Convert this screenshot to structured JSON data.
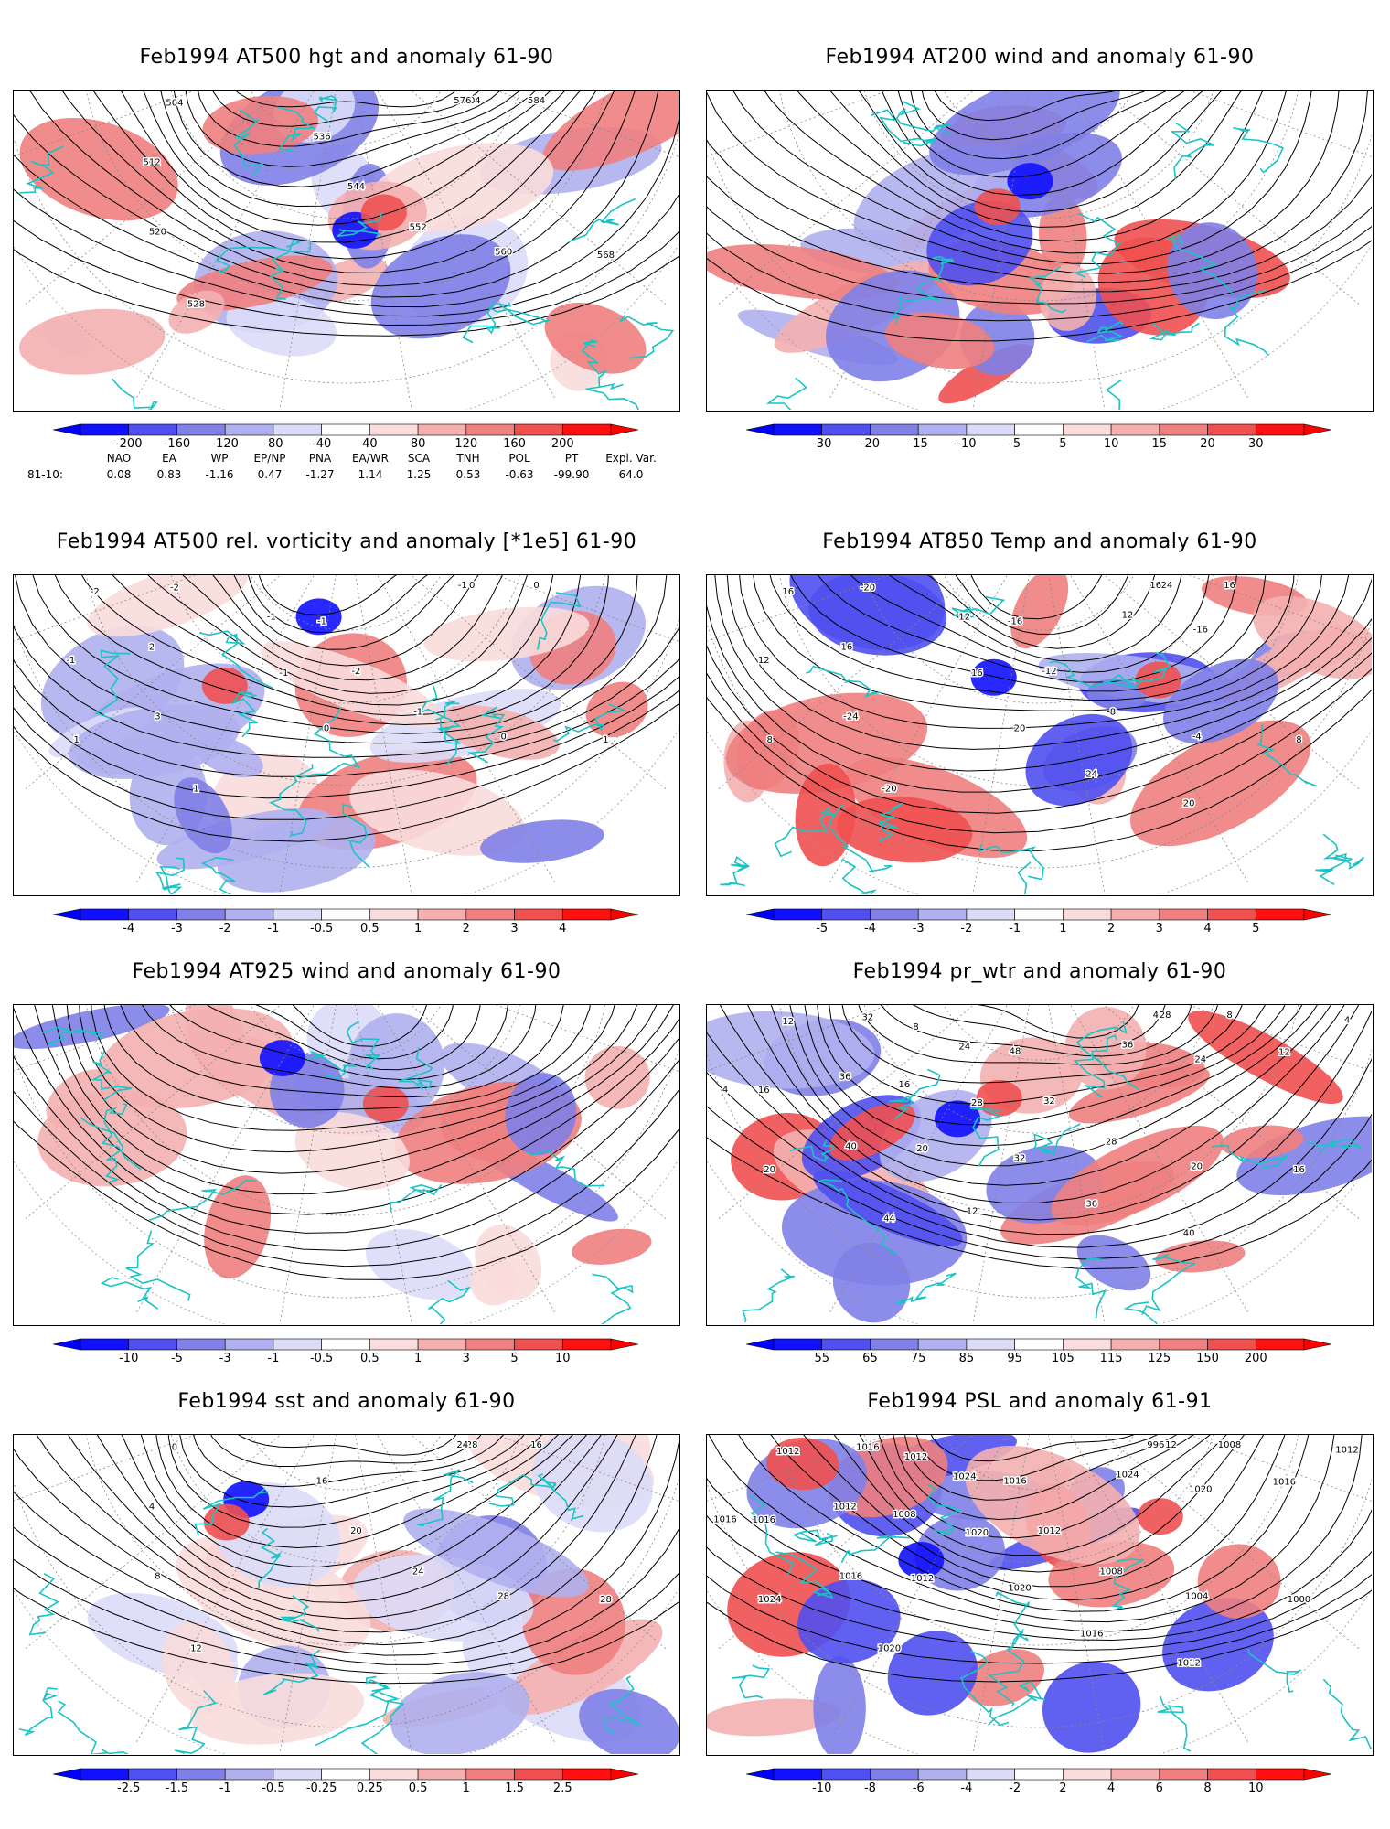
{
  "panels": [
    {
      "title": "Feb1994 AT500 hgt and anomaly 61-90",
      "contour_labels": [
        "504",
        "504",
        "512",
        "520",
        "528",
        "536",
        "544",
        "552",
        "560",
        "568",
        "576",
        "584"
      ],
      "colorbar": [
        "-200",
        "-160",
        "-120",
        "-80",
        "-40",
        "40",
        "80",
        "120",
        "160",
        "200"
      ]
    },
    {
      "title": "Feb1994 AT200 wind and anomaly 61-90",
      "contour_labels": [],
      "colorbar": [
        "-30",
        "-20",
        "-15",
        "-10",
        "-5",
        "5",
        "10",
        "15",
        "20",
        "30"
      ]
    },
    {
      "title": "Feb1994 AT500 rel. vorticity and anomaly [*1e5] 61-90",
      "contour_labels": [
        "0",
        "-2",
        "2",
        "3",
        "1",
        "-1",
        "-2",
        "-1",
        "0",
        "1",
        "-1",
        "0",
        "-2",
        "-1",
        "1",
        "-1",
        "-1",
        "0"
      ],
      "colorbar": [
        "-4",
        "-3",
        "-2",
        "-1",
        "-0.5",
        "0.5",
        "1",
        "2",
        "3",
        "4"
      ]
    },
    {
      "title": "Feb1994 AT850 Temp and anomaly 61-90",
      "contour_labels": [
        "-24",
        "-20",
        "-16",
        "-24",
        "-20",
        "-16",
        "-12",
        "-8",
        "-4",
        "8",
        "16",
        "16",
        "16",
        "12",
        "8",
        "12",
        "16",
        "20",
        "24",
        "20",
        "12",
        "-16"
      ],
      "colorbar": [
        "-5",
        "-4",
        "-3",
        "-2",
        "-1",
        "1",
        "2",
        "3",
        "4",
        "5"
      ]
    },
    {
      "title": "Feb1994 AT925 wind and anomaly 61-90",
      "contour_labels": [],
      "colorbar": [
        "-10",
        "-5",
        "-3",
        "-1",
        "-0.5",
        "0.5",
        "1",
        "3",
        "5",
        "10"
      ]
    },
    {
      "title": "Feb1994 pr_wtr and anomaly 61-90",
      "contour_labels": [
        "28",
        "32",
        "36",
        "40",
        "44",
        "48",
        "32",
        "28",
        "20",
        "16",
        "4",
        "8",
        "12",
        "16",
        "20",
        "24",
        "28",
        "32",
        "36",
        "40",
        "36",
        "24",
        "12",
        "4",
        "4",
        "8",
        "16",
        "20",
        "12"
      ],
      "colorbar": [
        "55",
        "65",
        "75",
        "85",
        "95",
        "105",
        "115",
        "125",
        "150",
        "200"
      ]
    },
    {
      "title": "Feb1994 sst and anomaly 61-90",
      "contour_labels": [
        "28",
        "0",
        "4",
        "8",
        "12",
        "16",
        "20",
        "24",
        "28",
        "28",
        "24",
        "16"
      ],
      "colorbar": [
        "-2.5",
        "-1.5",
        "-1",
        "-0.5",
        "-0.25",
        "0.25",
        "0.5",
        "1",
        "1.5",
        "2.5"
      ]
    },
    {
      "title": "Feb1994 PSL and anomaly 61-91",
      "contour_labels": [
        "1012",
        "1016",
        "1012",
        "1016",
        "1020",
        "1016",
        "1012",
        "1008",
        "1004",
        "1000",
        "996",
        "1008",
        "1012",
        "1016",
        "1024",
        "1024",
        "1020",
        "1020",
        "1016",
        "1012",
        "1024",
        "1020",
        "1016",
        "1012",
        "1016",
        "1012",
        "1008",
        "1012"
      ],
      "colorbar": [
        "-10",
        "-8",
        "-6",
        "-4",
        "-2",
        "2",
        "4",
        "6",
        "8",
        "10"
      ]
    }
  ],
  "indices": {
    "headers": [
      "NAO",
      "EA",
      "WP",
      "EP/NP",
      "PNA",
      "EA/WR",
      "SCA",
      "TNH",
      "POL",
      "PT",
      "Expl. Var."
    ],
    "row_label": "81-10:",
    "values": [
      "0.08",
      "0.83",
      "-1.16",
      "0.47",
      "-1.27",
      "1.14",
      "1.25",
      "0.53",
      "-0.63",
      "-99.90",
      "64.0"
    ]
  },
  "colors": {
    "coast": "#1bc4c4",
    "blues": [
      "#1010ff",
      "#5050f0",
      "#8080e8",
      "#b0b0f0",
      "#dcdcf8"
    ],
    "reds": [
      "#fadcdc",
      "#f4b0b0",
      "#f08080",
      "#f05050",
      "#ff1010"
    ]
  }
}
